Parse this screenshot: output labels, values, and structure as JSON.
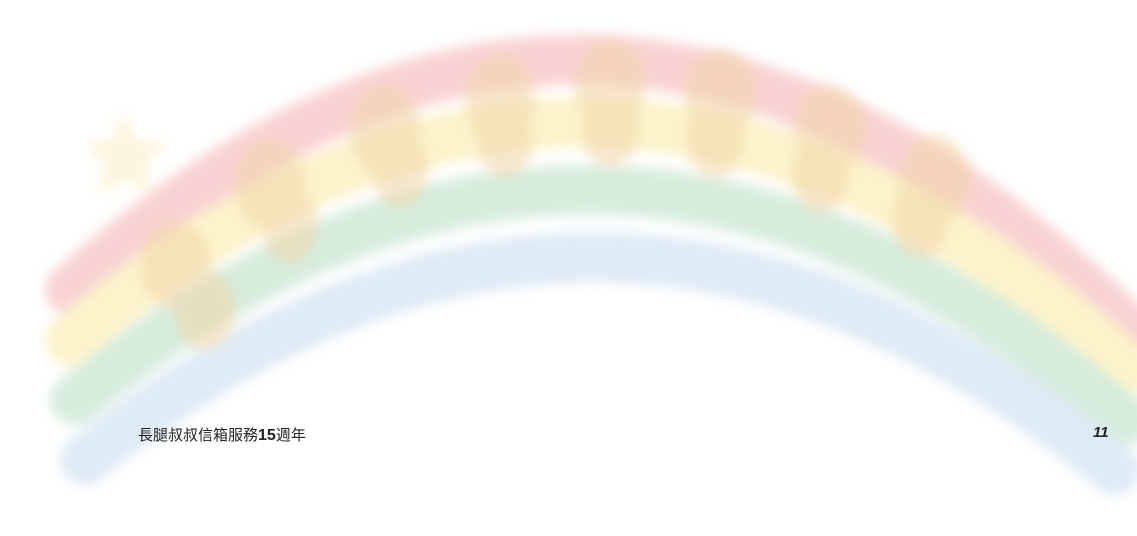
{
  "footer": {
    "title": [
      "長腿叔叔信箱服務",
      "15",
      "週年"
    ],
    "page_number": "11"
  }
}
